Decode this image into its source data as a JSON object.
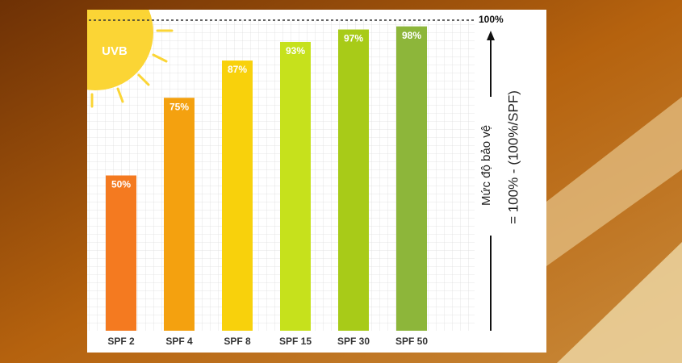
{
  "chart_data": {
    "type": "bar",
    "annotation": "UVB",
    "y_label": "Mức độ bảo vệ",
    "formula": "= 100% - (100%/SPF)",
    "categories": [
      "SPF 2",
      "SPF 4",
      "SPF 8",
      "SPF 15",
      "SPF 30",
      "SPF 50"
    ],
    "values": [
      50,
      75,
      87,
      93,
      97,
      98
    ],
    "value_labels": [
      "50%",
      "75%",
      "87%",
      "93%",
      "97%",
      "98%"
    ],
    "colors": [
      "#f47a20",
      "#f4a10f",
      "#f8d10c",
      "#c6e11c",
      "#a8cb18",
      "#8db63a"
    ],
    "ylim": [
      0,
      100
    ],
    "reference_line": {
      "value": 100,
      "label": "100%"
    },
    "grid": true
  }
}
